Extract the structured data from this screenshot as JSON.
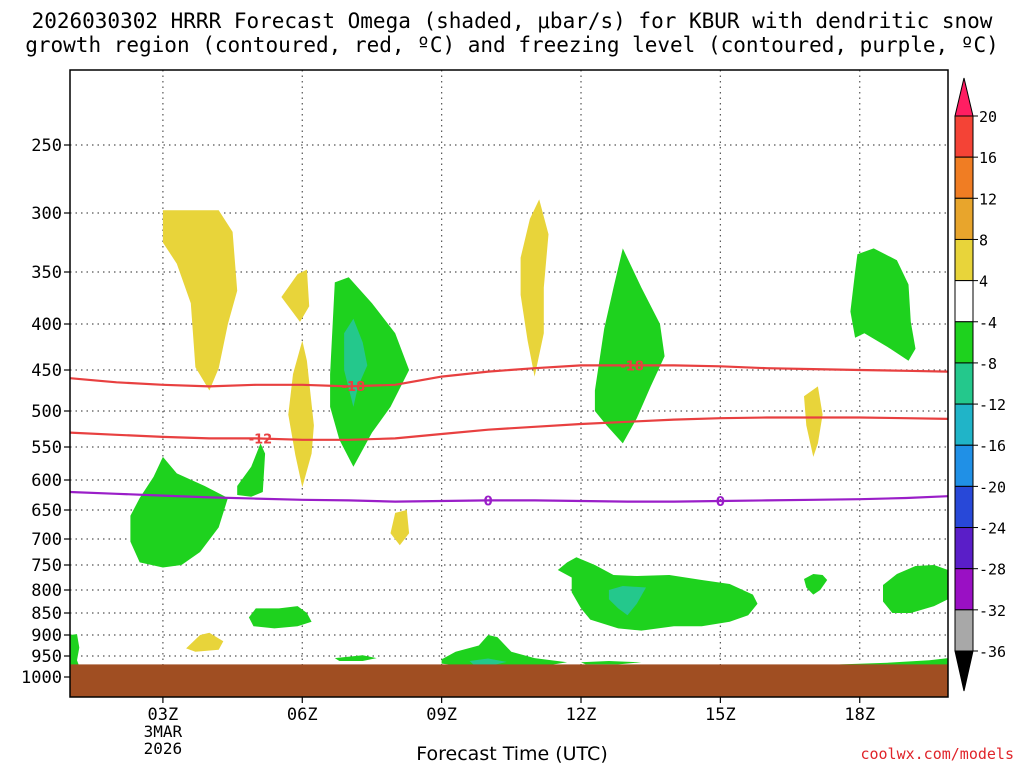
{
  "title_line1": "2026030302 HRRR Forecast Omega (shaded, μbar/s) for KBUR with dendritic snow",
  "title_line2": "growth region (contoured, red, ºC) and freezing level (contoured, purple, ºC)",
  "x_axis_label": "Forecast Time (UTC)",
  "credit": "coolwx.com/models",
  "chart_data": {
    "type": "time-height contour",
    "x_unit": "hours UTC from 2026-03-03 00Z",
    "x_range": [
      1.0,
      19.9
    ],
    "x_ticks": [
      {
        "x": 3,
        "label": "03Z"
      },
      {
        "x": 6,
        "label": "06Z"
      },
      {
        "x": 9,
        "label": "09Z"
      },
      {
        "x": 12,
        "label": "12Z"
      },
      {
        "x": 15,
        "label": "15Z"
      },
      {
        "x": 18,
        "label": "18Z"
      }
    ],
    "x_date_label": [
      "3MAR",
      "2026"
    ],
    "y_unit": "hPa",
    "y_ticks": [
      250,
      300,
      350,
      400,
      450,
      500,
      550,
      600,
      650,
      700,
      750,
      800,
      850,
      900,
      950,
      1000
    ],
    "colorbar": {
      "levels": [
        20,
        16,
        12,
        8,
        4,
        -4,
        -8,
        -12,
        -16,
        -20,
        -24,
        -28,
        -32,
        -36
      ],
      "colors": [
        "#ff1e62",
        "#f44336",
        "#f07d23",
        "#e8a52c",
        "#e8d43a",
        "#ffffff",
        "#1ed21e",
        "#24c88c",
        "#20b4c8",
        "#2090e6",
        "#2848d8",
        "#5a1ec8",
        "#9a10c4",
        "#a8a8a8",
        "#000000"
      ]
    },
    "omega_regions": [
      {
        "color": "#e8d43a",
        "points": [
          [
            3.0,
            298
          ],
          [
            4.2,
            298
          ],
          [
            4.5,
            316
          ],
          [
            4.6,
            368
          ],
          [
            4.4,
            400
          ],
          [
            4.2,
            448
          ],
          [
            4.0,
            475
          ],
          [
            3.7,
            447
          ],
          [
            3.6,
            380
          ],
          [
            3.3,
            343
          ],
          [
            3.0,
            325
          ]
        ]
      },
      {
        "color": "#e8d43a",
        "points": [
          [
            5.55,
            374
          ],
          [
            5.9,
            352
          ],
          [
            6.1,
            348
          ],
          [
            6.15,
            383
          ],
          [
            5.95,
            398
          ]
        ]
      },
      {
        "color": "#e8d43a",
        "points": [
          [
            6.0,
            418
          ],
          [
            5.8,
            455
          ],
          [
            5.7,
            505
          ],
          [
            5.85,
            562
          ],
          [
            6.0,
            612
          ],
          [
            6.2,
            560
          ],
          [
            6.25,
            520
          ],
          [
            6.1,
            440
          ]
        ]
      },
      {
        "color": "#e8d43a",
        "points": [
          [
            8.0,
            655
          ],
          [
            8.25,
            650
          ],
          [
            8.3,
            690
          ],
          [
            8.1,
            712
          ],
          [
            7.9,
            690
          ]
        ]
      },
      {
        "color": "#e8d43a",
        "points": [
          [
            10.7,
            338
          ],
          [
            10.9,
            305
          ],
          [
            11.1,
            290
          ],
          [
            11.3,
            318
          ],
          [
            11.2,
            365
          ],
          [
            11.2,
            410
          ],
          [
            11.0,
            458
          ],
          [
            10.85,
            418
          ],
          [
            10.7,
            372
          ]
        ]
      },
      {
        "color": "#e8d43a",
        "points": [
          [
            16.8,
            482
          ],
          [
            17.1,
            470
          ],
          [
            17.2,
            505
          ],
          [
            17.1,
            545
          ],
          [
            17.0,
            565
          ],
          [
            16.85,
            520
          ]
        ]
      },
      {
        "color": "#e8d43a",
        "points": [
          [
            3.5,
            932
          ],
          [
            3.8,
            900
          ],
          [
            4.0,
            895
          ],
          [
            4.3,
            915
          ],
          [
            4.2,
            935
          ],
          [
            3.7,
            940
          ]
        ]
      },
      {
        "color": "#1ed21e",
        "points": [
          [
            2.3,
            660
          ],
          [
            2.5,
            630
          ],
          [
            2.8,
            595
          ],
          [
            3.0,
            565
          ],
          [
            3.3,
            590
          ],
          [
            3.9,
            610
          ],
          [
            4.4,
            630
          ],
          [
            4.2,
            680
          ],
          [
            3.8,
            725
          ],
          [
            3.4,
            750
          ],
          [
            3.0,
            755
          ],
          [
            2.5,
            745
          ],
          [
            2.3,
            705
          ]
        ]
      },
      {
        "color": "#1ed21e",
        "points": [
          [
            4.6,
            610
          ],
          [
            4.9,
            580
          ],
          [
            5.1,
            545
          ],
          [
            5.2,
            560
          ],
          [
            5.15,
            620
          ],
          [
            4.9,
            628
          ],
          [
            4.6,
            625
          ]
        ]
      },
      {
        "color": "#1ed21e",
        "points": [
          [
            4.85,
            860
          ],
          [
            5.0,
            840
          ],
          [
            5.5,
            840
          ],
          [
            5.9,
            835
          ],
          [
            6.1,
            850
          ],
          [
            6.2,
            870
          ],
          [
            5.9,
            880
          ],
          [
            5.4,
            885
          ],
          [
            4.95,
            880
          ]
        ]
      },
      {
        "color": "#1ed21e",
        "points": [
          [
            6.6,
            455
          ],
          [
            6.7,
            360
          ],
          [
            7.0,
            355
          ],
          [
            7.5,
            380
          ],
          [
            8.0,
            410
          ],
          [
            8.3,
            450
          ],
          [
            7.9,
            495
          ],
          [
            7.5,
            530
          ],
          [
            7.1,
            580
          ],
          [
            6.8,
            540
          ],
          [
            6.6,
            495
          ]
        ]
      },
      {
        "color": "#24c88c",
        "points": [
          [
            6.9,
            410
          ],
          [
            7.1,
            395
          ],
          [
            7.3,
            420
          ],
          [
            7.4,
            445
          ],
          [
            7.2,
            470
          ],
          [
            7.1,
            495
          ],
          [
            6.9,
            450
          ]
        ]
      },
      {
        "color": "#1ed21e",
        "points": [
          [
            6.7,
            955
          ],
          [
            7.3,
            948
          ],
          [
            7.6,
            955
          ],
          [
            7.3,
            962
          ],
          [
            6.8,
            962
          ]
        ]
      },
      {
        "color": "#1ed21e",
        "points": [
          [
            9.0,
            958
          ],
          [
            9.3,
            940
          ],
          [
            9.8,
            925
          ],
          [
            10.0,
            900
          ],
          [
            10.2,
            905
          ],
          [
            10.5,
            940
          ],
          [
            11.0,
            955
          ],
          [
            11.7,
            965
          ],
          [
            11.3,
            972
          ],
          [
            10.3,
            975
          ],
          [
            9.5,
            975
          ],
          [
            9.0,
            968
          ]
        ]
      },
      {
        "color": "#24c88c",
        "points": [
          [
            9.6,
            962
          ],
          [
            10.0,
            956
          ],
          [
            10.4,
            964
          ],
          [
            10.1,
            972
          ],
          [
            9.7,
            972
          ]
        ]
      },
      {
        "color": "#1ed21e",
        "points": [
          [
            12.3,
            475
          ],
          [
            12.5,
            405
          ],
          [
            12.7,
            365
          ],
          [
            12.9,
            330
          ],
          [
            13.3,
            365
          ],
          [
            13.7,
            400
          ],
          [
            13.8,
            435
          ],
          [
            13.5,
            470
          ],
          [
            13.2,
            510
          ],
          [
            12.9,
            545
          ],
          [
            12.55,
            520
          ],
          [
            12.3,
            500
          ]
        ]
      },
      {
        "color": "#1ed21e",
        "points": [
          [
            12.0,
            965
          ],
          [
            12.6,
            962
          ],
          [
            13.3,
            965
          ],
          [
            12.8,
            970
          ],
          [
            12.1,
            970
          ]
        ]
      },
      {
        "color": "#1ed21e",
        "points": [
          [
            11.7,
            745
          ],
          [
            11.9,
            735
          ],
          [
            12.3,
            750
          ],
          [
            12.7,
            770
          ],
          [
            13.2,
            772
          ],
          [
            13.9,
            770
          ],
          [
            14.6,
            780
          ],
          [
            15.2,
            788
          ],
          [
            15.7,
            810
          ],
          [
            15.8,
            830
          ],
          [
            15.6,
            855
          ],
          [
            15.2,
            870
          ],
          [
            14.6,
            880
          ],
          [
            14.0,
            880
          ],
          [
            13.3,
            890
          ],
          [
            12.8,
            885
          ],
          [
            12.2,
            865
          ],
          [
            12.0,
            840
          ],
          [
            11.8,
            805
          ],
          [
            11.8,
            775
          ],
          [
            11.5,
            760
          ]
        ]
      },
      {
        "color": "#24c88c",
        "points": [
          [
            12.6,
            800
          ],
          [
            12.9,
            792
          ],
          [
            13.4,
            795
          ],
          [
            13.2,
            830
          ],
          [
            13.0,
            855
          ],
          [
            12.8,
            840
          ],
          [
            12.6,
            820
          ]
        ]
      },
      {
        "color": "#1ed21e",
        "points": [
          [
            16.8,
            778
          ],
          [
            17.0,
            768
          ],
          [
            17.2,
            770
          ],
          [
            17.3,
            780
          ],
          [
            17.15,
            800
          ],
          [
            17.0,
            810
          ],
          [
            16.85,
            795
          ]
        ]
      },
      {
        "color": "#1ed21e",
        "points": [
          [
            17.8,
            388
          ],
          [
            17.9,
            350
          ],
          [
            17.95,
            335
          ],
          [
            18.3,
            330
          ],
          [
            18.8,
            340
          ],
          [
            19.05,
            362
          ],
          [
            19.1,
            398
          ],
          [
            19.2,
            427
          ],
          [
            19.05,
            440
          ],
          [
            18.6,
            425
          ],
          [
            18.1,
            410
          ],
          [
            17.9,
            415
          ]
        ]
      },
      {
        "color": "#1ed21e",
        "points": [
          [
            18.5,
            790
          ],
          [
            18.8,
            768
          ],
          [
            19.2,
            752
          ],
          [
            19.6,
            750
          ],
          [
            19.9,
            760
          ],
          [
            19.9,
            820
          ],
          [
            19.6,
            835
          ],
          [
            19.1,
            850
          ],
          [
            18.7,
            850
          ],
          [
            18.5,
            825
          ]
        ]
      },
      {
        "color": "#1ed21e",
        "points": [
          [
            16.8,
            975
          ],
          [
            17.6,
            970
          ],
          [
            18.6,
            966
          ],
          [
            19.5,
            960
          ],
          [
            19.9,
            955
          ],
          [
            19.9,
            975
          ]
        ]
      },
      {
        "color": "#1ed21e",
        "points": [
          [
            1.0,
            900
          ],
          [
            1.15,
            898
          ],
          [
            1.2,
            930
          ],
          [
            1.15,
            960
          ],
          [
            1.2,
            975
          ],
          [
            1.0,
            975
          ]
        ]
      }
    ],
    "contours": [
      {
        "name": "-18 isotherm",
        "color": "#e84040",
        "label": "-18",
        "label_x": 7.1,
        "points": [
          [
            1,
            460
          ],
          [
            2,
            465
          ],
          [
            3,
            468
          ],
          [
            4,
            470
          ],
          [
            5,
            468
          ],
          [
            6,
            468
          ],
          [
            7,
            470
          ],
          [
            8,
            468
          ],
          [
            9,
            458
          ],
          [
            10,
            452
          ],
          [
            11,
            448
          ],
          [
            12,
            445
          ],
          [
            13,
            445
          ],
          [
            14,
            445
          ],
          [
            15,
            446
          ],
          [
            16,
            448
          ],
          [
            17,
            449
          ],
          [
            18,
            450
          ],
          [
            19,
            451
          ],
          [
            19.9,
            452
          ]
        ]
      },
      {
        "name": "-18 isotherm label 2",
        "color": "#e84040",
        "label": "-18",
        "label_x": 13.1,
        "points": []
      },
      {
        "name": "-12 isotherm",
        "color": "#e84040",
        "label": "-12",
        "label_x": 5.1,
        "points": [
          [
            1,
            530
          ],
          [
            2,
            533
          ],
          [
            3,
            536
          ],
          [
            4,
            538
          ],
          [
            5,
            538
          ],
          [
            6,
            540
          ],
          [
            7,
            540
          ],
          [
            8,
            538
          ],
          [
            9,
            532
          ],
          [
            10,
            526
          ],
          [
            11,
            522
          ],
          [
            12,
            518
          ],
          [
            13,
            515
          ],
          [
            14,
            512
          ],
          [
            15,
            510
          ],
          [
            16,
            509
          ],
          [
            17,
            509
          ],
          [
            18,
            509
          ],
          [
            19,
            510
          ],
          [
            19.9,
            511
          ]
        ]
      },
      {
        "name": "freezing level",
        "color": "#9a1ec8",
        "label": "0",
        "label_x": 10.0,
        "points": [
          [
            1,
            620
          ],
          [
            2,
            623
          ],
          [
            3,
            626
          ],
          [
            4,
            629
          ],
          [
            5,
            631
          ],
          [
            6,
            633
          ],
          [
            7,
            634
          ],
          [
            8,
            636
          ],
          [
            9,
            635
          ],
          [
            10,
            634
          ],
          [
            11,
            634
          ],
          [
            12,
            635
          ],
          [
            13,
            636
          ],
          [
            14,
            636
          ],
          [
            15,
            635
          ],
          [
            16,
            634
          ],
          [
            17,
            633
          ],
          [
            18,
            632
          ],
          [
            19,
            630
          ],
          [
            19.9,
            627
          ]
        ]
      },
      {
        "name": "freezing level label 2",
        "color": "#9a1ec8",
        "label": "0",
        "label_x": 15.0,
        "points": []
      }
    ],
    "ground": {
      "color": "#a04e22",
      "top_hPa": 970
    }
  }
}
